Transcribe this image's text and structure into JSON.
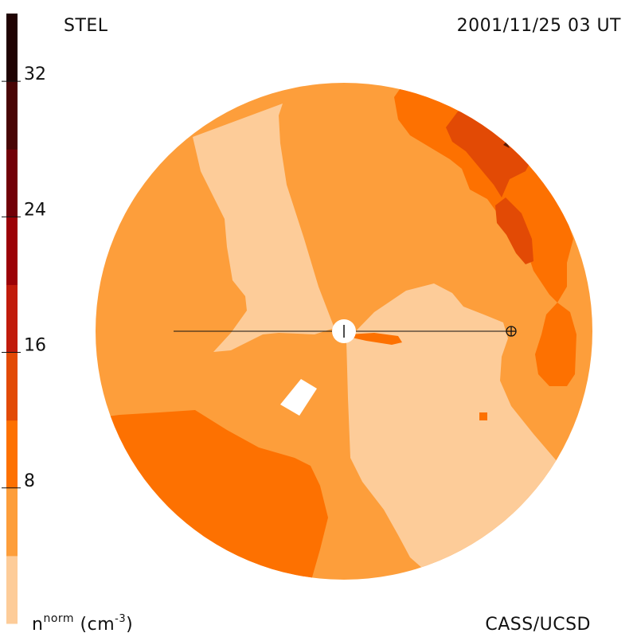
{
  "header": {
    "instrument": "STEL",
    "timestamp": "2001/11/25 03 UT"
  },
  "footer": {
    "credit": "CASS/UCSD"
  },
  "colorbar": {
    "unit_base": "n",
    "unit_sup": "norm",
    "unit_paren_open": " (cm",
    "unit_exp": "-3",
    "unit_paren_close": ")",
    "min": 0,
    "max": 36,
    "ticks": [
      {
        "value": 8,
        "label": "8"
      },
      {
        "value": 16,
        "label": "16"
      },
      {
        "value": 24,
        "label": "24"
      },
      {
        "value": 32,
        "label": "32"
      }
    ],
    "bands": [
      {
        "from": 0,
        "to": 4,
        "color": "#fdcc99"
      },
      {
        "from": 4,
        "to": 8,
        "color": "#fd9e3b"
      },
      {
        "from": 8,
        "to": 12,
        "color": "#fd7101"
      },
      {
        "from": 12,
        "to": 16,
        "color": "#e24a05"
      },
      {
        "from": 16,
        "to": 20,
        "color": "#c11b0b"
      },
      {
        "from": 20,
        "to": 24,
        "color": "#9c0207"
      },
      {
        "from": 24,
        "to": 28,
        "color": "#720008"
      },
      {
        "from": 28,
        "to": 32,
        "color": "#490505"
      },
      {
        "from": 32,
        "to": 36,
        "color": "#200303"
      }
    ]
  },
  "map": {
    "background_band_color": "#fd9e3b",
    "regions": [
      {
        "name": "upper-light-sector",
        "band": 0
      },
      {
        "name": "right-light-sector",
        "band": 0
      },
      {
        "name": "lower-left-dark-sector",
        "band": 2
      },
      {
        "name": "upper-right-dark-sector",
        "band": 2
      },
      {
        "name": "right-edge-dark-sector",
        "band": 2
      },
      {
        "name": "upper-right-core",
        "band": 3
      },
      {
        "name": "upper-right-core-lower",
        "band": 3
      },
      {
        "name": "center-streamer",
        "band": 2
      },
      {
        "name": "small-patch",
        "band": 2
      }
    ],
    "sun_marker": "sun",
    "earth_marker": "earth"
  }
}
